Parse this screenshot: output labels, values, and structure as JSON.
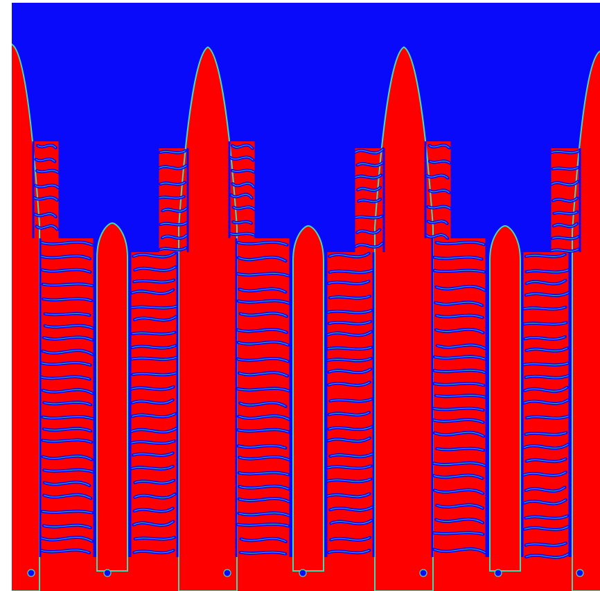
{
  "image": {
    "colors": {
      "solid": "#ff0000",
      "liquid": "#0a0afa",
      "interface": "#43dcb0",
      "background": "#ffffff"
    }
  }
}
